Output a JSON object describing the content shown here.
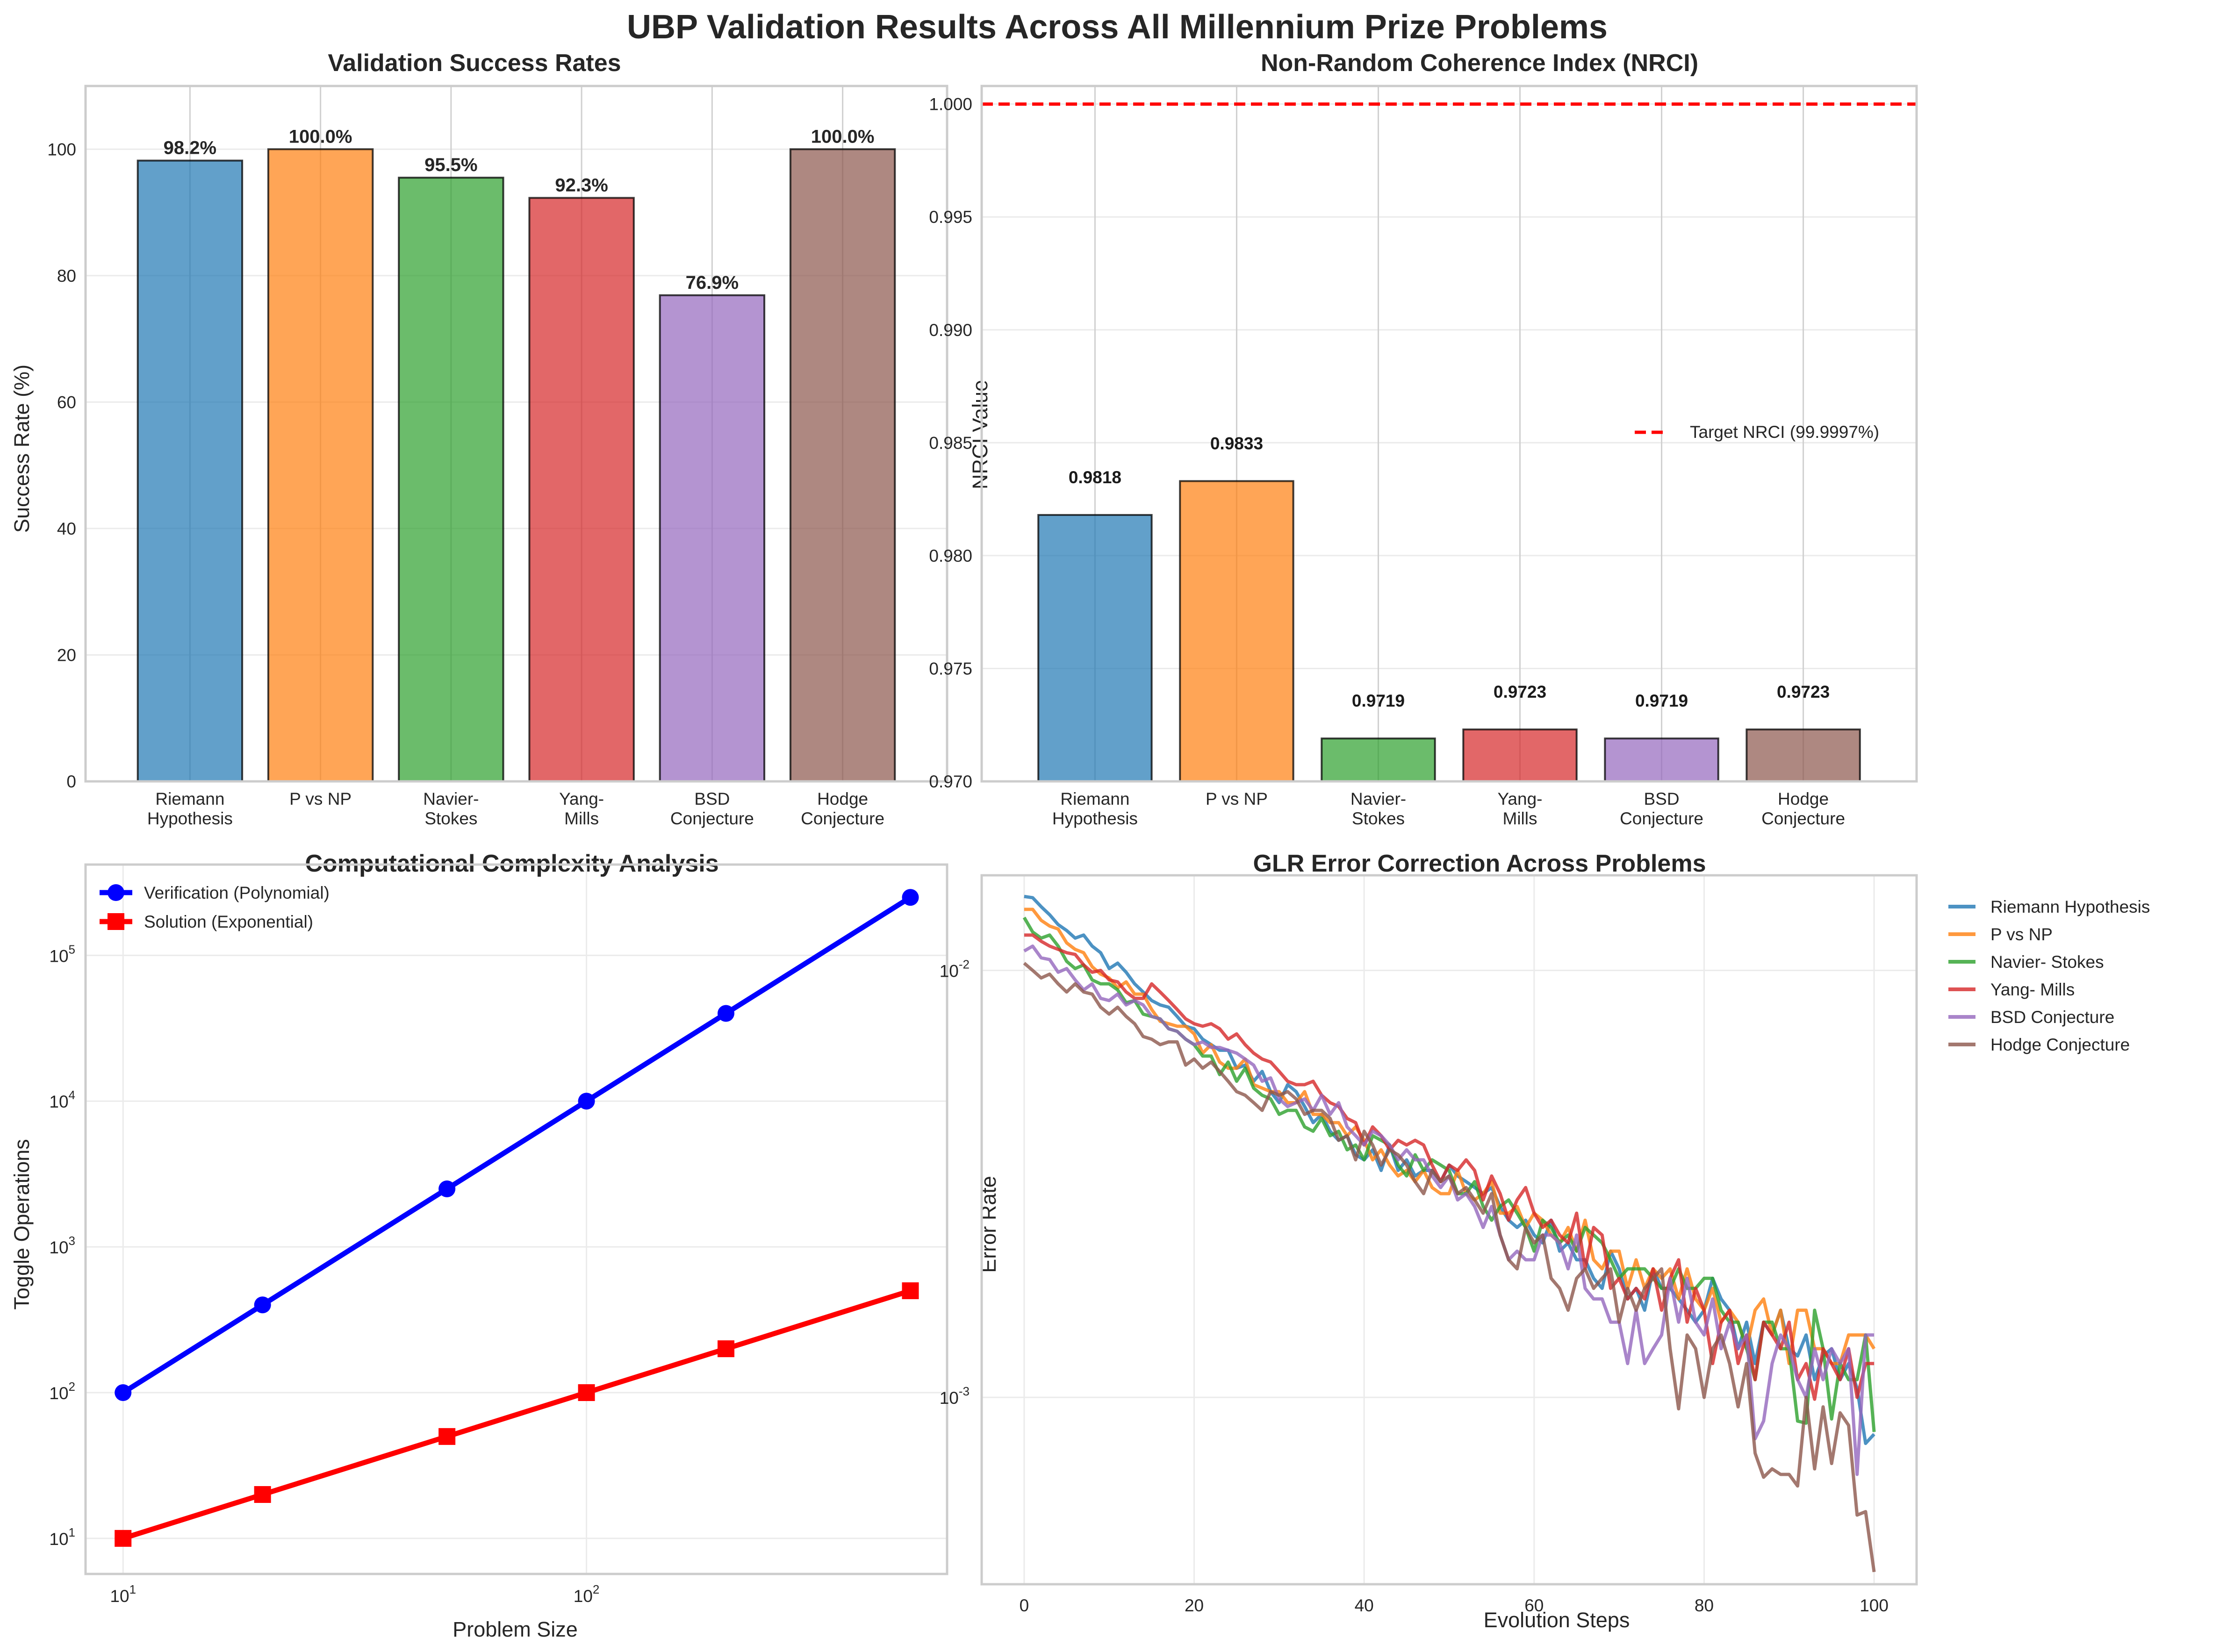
{
  "figure": {
    "suptitle": "UBP Validation Results Across All Millennium Prize Problems"
  },
  "chart_data": [
    {
      "id": "success",
      "type": "bar",
      "title": "Validation Success Rates",
      "xlabel": "",
      "ylabel": "Success Rate (%)",
      "categories": [
        [
          "Riemann",
          "Hypothesis"
        ],
        [
          "P vs NP"
        ],
        [
          "Navier-",
          "Stokes"
        ],
        [
          "Yang-",
          "Mills"
        ],
        [
          "BSD",
          "Conjecture"
        ],
        [
          "Hodge",
          "Conjecture"
        ]
      ],
      "values": [
        98.2,
        100.0,
        95.5,
        92.3,
        76.9,
        100.0
      ],
      "data_labels": [
        "98.2%",
        "100.0%",
        "95.5%",
        "92.3%",
        "76.9%",
        "100.0%"
      ],
      "colors": [
        "#1f77b4",
        "#ff7f0e",
        "#2ca02c",
        "#d62728",
        "#9467bd",
        "#8c564b"
      ],
      "ylim": [
        0,
        110
      ],
      "yticks": [
        0,
        20,
        40,
        60,
        80,
        100
      ],
      "ytick_labels": [
        "0",
        "20",
        "40",
        "60",
        "80",
        "100"
      ],
      "grid": true
    },
    {
      "id": "nrci",
      "type": "bar",
      "title": "Non-Random Coherence Index (NRCI)",
      "xlabel": "",
      "ylabel": "NRCI Value",
      "categories": [
        [
          "Riemann",
          "Hypothesis"
        ],
        [
          "P vs NP"
        ],
        [
          "Navier-",
          "Stokes"
        ],
        [
          "Yang-",
          "Mills"
        ],
        [
          "BSD",
          "Conjecture"
        ],
        [
          "Hodge",
          "Conjecture"
        ]
      ],
      "values": [
        0.9818,
        0.9833,
        0.9719,
        0.9723,
        0.9719,
        0.9723
      ],
      "data_labels": [
        "0.9818",
        "0.9833",
        "0.9719",
        "0.9723",
        "0.9719",
        "0.9723"
      ],
      "colors": [
        "#1f77b4",
        "#ff7f0e",
        "#2ca02c",
        "#d62728",
        "#9467bd",
        "#8c564b"
      ],
      "ylim": [
        0.97,
        1.0008
      ],
      "yticks": [
        0.97,
        0.975,
        0.98,
        0.985,
        0.99,
        0.995,
        1.0
      ],
      "ytick_labels": [
        "0.970",
        "0.975",
        "0.980",
        "0.985",
        "0.990",
        "0.995",
        "1.000"
      ],
      "reference_line": {
        "value": 0.999997,
        "label": "Target NRCI (99.9997%)",
        "color": "#ff0000",
        "style": "dashed"
      },
      "legend_position": "center-right",
      "grid": true
    },
    {
      "id": "complexity",
      "type": "line",
      "title": "Computational Complexity Analysis",
      "xlabel": "Problem Size",
      "ylabel": "Toggle Operations",
      "xscale": "log",
      "yscale": "log",
      "x": [
        10,
        20,
        50,
        100,
        200,
        500
      ],
      "series": [
        {
          "name": "Verification (Polynomial)",
          "values": [
            100,
            400,
            2500,
            10000,
            40000,
            250000
          ],
          "color": "#0000ff",
          "marker": "circle"
        },
        {
          "name": "Solution (Exponential)",
          "values": [
            10,
            20,
            50,
            100,
            200,
            500
          ],
          "color": "#ff0000",
          "marker": "square"
        }
      ],
      "xlim": [
        8.3,
        600
      ],
      "ylim": [
        5.7,
        420000
      ],
      "xticks": [
        10,
        100
      ],
      "xtick_labels": [
        {
          "base": "10",
          "exp": "1"
        },
        {
          "base": "10",
          "exp": "2"
        }
      ],
      "yticks": [
        10,
        100,
        1000,
        10000,
        100000
      ],
      "ytick_labels": [
        {
          "base": "10",
          "exp": "1"
        },
        {
          "base": "10",
          "exp": "2"
        },
        {
          "base": "10",
          "exp": "3"
        },
        {
          "base": "10",
          "exp": "4"
        },
        {
          "base": "10",
          "exp": "5"
        }
      ],
      "legend_position": "top-left",
      "grid": true
    },
    {
      "id": "glr",
      "type": "line",
      "title": "GLR Error Correction Across Problems",
      "xlabel": "Evolution Steps",
      "ylabel": "Error Rate",
      "yscale": "log",
      "xlim": [
        -5,
        105
      ],
      "ylim": [
        0.000365,
        0.0167
      ],
      "xticks": [
        0,
        20,
        40,
        60,
        80,
        100
      ],
      "xtick_labels": [
        "0",
        "20",
        "40",
        "60",
        "80",
        "100"
      ],
      "yticks": [
        0.001,
        0.01
      ],
      "ytick_labels": [
        {
          "base": "10",
          "exp": "-3"
        },
        {
          "base": "10",
          "exp": "-2"
        }
      ],
      "legend_position": "outside-right",
      "grid": true,
      "series": [
        {
          "name": "Riemann Hypothesis",
          "color": "#1f77b4",
          "values": [
            0.0149,
            0.0148,
            0.0141,
            0.0135,
            0.0128,
            0.0124,
            0.0119,
            0.0121,
            0.0114,
            0.011,
            0.0101,
            0.0104,
            0.0099,
            0.0093,
            0.0089,
            0.0085,
            0.0083,
            0.0082,
            0.0078,
            0.0074,
            0.0073,
            0.0069,
            0.0067,
            0.0065,
            0.0065,
            0.0059,
            0.006,
            0.0055,
            0.0058,
            0.0052,
            0.0049,
            0.0054,
            0.0052,
            0.0048,
            0.0044,
            0.0046,
            0.0042,
            0.004,
            0.0041,
            0.0037,
            0.0036,
            0.0038,
            0.0034,
            0.0039,
            0.0034,
            0.0036,
            0.0033,
            0.0034,
            0.0034,
            0.0032,
            0.0035,
            0.0033,
            0.0032,
            0.0031,
            0.003,
            0.0031,
            0.0028,
            0.0026,
            0.0025,
            0.0026,
            0.0024,
            0.0023,
            0.0026,
            0.0022,
            0.0023,
            0.0021,
            0.0021,
            0.0019,
            0.0018,
            0.0022,
            0.002,
            0.0017,
            0.0018,
            0.0016,
            0.002,
            0.0018,
            0.0018,
            0.0017,
            0.0016,
            0.0015,
            0.0016,
            0.0019,
            0.0017,
            0.0016,
            0.0013,
            0.0015,
            0.0012,
            0.0015,
            0.0014,
            0.0016,
            0.0013,
            0.00125,
            0.0014,
            0.0011,
            0.00125,
            0.0013,
            0.0011,
            0.0012,
            0.00105,
            0.00078,
            0.00082
          ]
        },
        {
          "name": "P vs NP",
          "color": "#ff7f0e",
          "values": [
            0.0139,
            0.0139,
            0.0131,
            0.0127,
            0.0125,
            0.0116,
            0.0112,
            0.011,
            0.0102,
            0.0098,
            0.0096,
            0.0091,
            0.0094,
            0.0088,
            0.0088,
            0.0081,
            0.0076,
            0.0075,
            0.0074,
            0.0074,
            0.0071,
            0.0064,
            0.0067,
            0.0061,
            0.0059,
            0.0059,
            0.0062,
            0.0054,
            0.0053,
            0.0052,
            0.0052,
            0.0049,
            0.0049,
            0.0052,
            0.0046,
            0.0046,
            0.0044,
            0.0044,
            0.0041,
            0.0043,
            0.004,
            0.0036,
            0.0038,
            0.0035,
            0.0033,
            0.0034,
            0.0032,
            0.0034,
            0.0031,
            0.003,
            0.003,
            0.0034,
            0.003,
            0.0029,
            0.003,
            0.0032,
            0.0027,
            0.0027,
            0.0028,
            0.0025,
            0.0027,
            0.0026,
            0.0024,
            0.0023,
            0.0025,
            0.0022,
            0.0026,
            0.0021,
            0.002,
            0.0022,
            0.0022,
            0.0018,
            0.0021,
            0.0018,
            0.002,
            0.0019,
            0.002,
            0.0017,
            0.002,
            0.0017,
            0.0016,
            0.0018,
            0.0015,
            0.0016,
            0.0015,
            0.0013,
            0.0016,
            0.0017,
            0.0014,
            0.0016,
            0.0012,
            0.0016,
            0.0016,
            0.0013,
            0.0013,
            0.0012,
            0.0012,
            0.0014,
            0.0014,
            0.0014,
            0.0013
          ]
        },
        {
          "name": "Navier- Stokes",
          "color": "#2ca02c",
          "values": [
            0.0133,
            0.0123,
            0.0119,
            0.0121,
            0.0114,
            0.0105,
            0.0101,
            0.0103,
            0.0095,
            0.0093,
            0.0093,
            0.009,
            0.0084,
            0.0085,
            0.0079,
            0.0078,
            0.0077,
            0.0073,
            0.0072,
            0.0069,
            0.0067,
            0.0063,
            0.0063,
            0.0057,
            0.0061,
            0.0055,
            0.0059,
            0.0053,
            0.0051,
            0.005,
            0.0046,
            0.0047,
            0.0047,
            0.0043,
            0.0042,
            0.0045,
            0.0041,
            0.0042,
            0.0038,
            0.0039,
            0.0036,
            0.0041,
            0.004,
            0.0039,
            0.0035,
            0.0033,
            0.0037,
            0.0034,
            0.0036,
            0.0035,
            0.0034,
            0.003,
            0.003,
            0.0032,
            0.0028,
            0.0026,
            0.0028,
            0.0029,
            0.0027,
            0.0025,
            0.0022,
            0.0026,
            0.0025,
            0.0023,
            0.0024,
            0.0022,
            0.0025,
            0.0024,
            0.0023,
            0.0021,
            0.0019,
            0.002,
            0.002,
            0.002,
            0.0019,
            0.0018,
            0.0018,
            0.002,
            0.0018,
            0.0018,
            0.0019,
            0.0019,
            0.0016,
            0.0015,
            0.0015,
            0.0013,
            0.0011,
            0.0015,
            0.0015,
            0.0013,
            0.0013,
            0.00088,
            0.00087,
            0.0016,
            0.0013,
            0.00089,
            0.0012,
            0.0011,
            0.0011,
            0.0014,
            0.00083
          ]
        },
        {
          "name": "Yang- Mills",
          "color": "#d62728",
          "values": [
            0.0121,
            0.0121,
            0.0117,
            0.0114,
            0.0112,
            0.011,
            0.0109,
            0.0103,
            0.0099,
            0.01,
            0.0095,
            0.0094,
            0.0089,
            0.0086,
            0.0086,
            0.0093,
            0.0089,
            0.0085,
            0.0081,
            0.0077,
            0.0075,
            0.0074,
            0.0075,
            0.0073,
            0.0069,
            0.0071,
            0.0067,
            0.0064,
            0.0062,
            0.0061,
            0.0058,
            0.0055,
            0.0054,
            0.0054,
            0.0055,
            0.0051,
            0.0049,
            0.0048,
            0.0045,
            0.0044,
            0.0039,
            0.0043,
            0.0041,
            0.0038,
            0.004,
            0.0039,
            0.004,
            0.0039,
            0.0035,
            0.0032,
            0.0035,
            0.0034,
            0.0036,
            0.0034,
            0.0029,
            0.0033,
            0.003,
            0.0026,
            0.0029,
            0.0031,
            0.0027,
            0.0025,
            0.0026,
            0.0024,
            0.0023,
            0.0027,
            0.002,
            0.0025,
            0.0024,
            0.0018,
            0.0019,
            0.0017,
            0.0018,
            0.0017,
            0.002,
            0.0016,
            0.0019,
            0.0021,
            0.0015,
            0.0018,
            0.0016,
            0.0012,
            0.0015,
            0.0016,
            0.0012,
            0.0014,
            0.0011,
            0.0015,
            0.0014,
            0.0013,
            0.0015,
            0.0011,
            0.0012,
            0.00099,
            0.0013,
            0.0012,
            0.0011,
            0.0013,
            0.001,
            0.0012,
            0.0012
          ]
        },
        {
          "name": "BSD Conjecture",
          "color": "#9467bd",
          "values": [
            0.0111,
            0.0114,
            0.0107,
            0.0106,
            0.0099,
            0.0101,
            0.0095,
            0.009,
            0.0093,
            0.0086,
            0.0085,
            0.0088,
            0.0083,
            0.0085,
            0.0083,
            0.0078,
            0.0077,
            0.0073,
            0.0072,
            0.0069,
            0.0067,
            0.0068,
            0.0066,
            0.0066,
            0.0065,
            0.0064,
            0.0062,
            0.006,
            0.0055,
            0.0056,
            0.005,
            0.0048,
            0.0049,
            0.005,
            0.0047,
            0.0051,
            0.0046,
            0.0049,
            0.0043,
            0.0041,
            0.0039,
            0.0042,
            0.0041,
            0.0039,
            0.0036,
            0.0038,
            0.0036,
            0.0036,
            0.0033,
            0.0031,
            0.0033,
            0.0029,
            0.003,
            0.0028,
            0.0025,
            0.0028,
            0.0024,
            0.0021,
            0.0022,
            0.0021,
            0.0021,
            0.0024,
            0.0024,
            0.0023,
            0.002,
            0.0024,
            0.0018,
            0.0017,
            0.0017,
            0.0015,
            0.0015,
            0.0012,
            0.0016,
            0.0012,
            0.0013,
            0.0014,
            0.0019,
            0.0015,
            0.0019,
            0.0015,
            0.0014,
            0.0017,
            0.0013,
            0.0015,
            0.0013,
            0.0014,
            0.0008,
            0.00088,
            0.0012,
            0.0014,
            0.0013,
            0.0011,
            0.001,
            0.0013,
            0.0011,
            0.0013,
            0.0012,
            0.0013,
            0.00066,
            0.0014,
            0.0014
          ]
        },
        {
          "name": "Hodge Conjecture",
          "color": "#8c564b",
          "values": [
            0.0104,
            0.01,
            0.0096,
            0.0098,
            0.0093,
            0.0089,
            0.0093,
            0.0089,
            0.0088,
            0.0082,
            0.0079,
            0.0082,
            0.0078,
            0.0075,
            0.007,
            0.0069,
            0.0067,
            0.0068,
            0.0068,
            0.006,
            0.0062,
            0.0059,
            0.0061,
            0.0058,
            0.0055,
            0.0052,
            0.0051,
            0.0049,
            0.0047,
            0.0052,
            0.0051,
            0.0052,
            0.005,
            0.0046,
            0.0047,
            0.0047,
            0.0045,
            0.004,
            0.0041,
            0.0036,
            0.0042,
            0.0039,
            0.0035,
            0.0038,
            0.0037,
            0.0035,
            0.0032,
            0.003,
            0.0034,
            0.0032,
            0.0033,
            0.003,
            0.0031,
            0.0029,
            0.0027,
            0.003,
            0.0024,
            0.0021,
            0.002,
            0.0025,
            0.0023,
            0.0024,
            0.0019,
            0.0018,
            0.0016,
            0.0019,
            0.002,
            0.0018,
            0.0019,
            0.002,
            0.0015,
            0.0018,
            0.0016,
            0.0018,
            0.0019,
            0.002,
            0.0013,
            0.00094,
            0.0014,
            0.0013,
            0.001,
            0.0013,
            0.0014,
            0.0012,
            0.00095,
            0.0012,
            0.00074,
            0.00065,
            0.00068,
            0.00066,
            0.00066,
            0.00062,
            0.001,
            0.00068,
            0.00095,
            0.0007,
            0.00092,
            0.00086,
            0.00053,
            0.00054,
            0.00039
          ]
        }
      ]
    }
  ]
}
